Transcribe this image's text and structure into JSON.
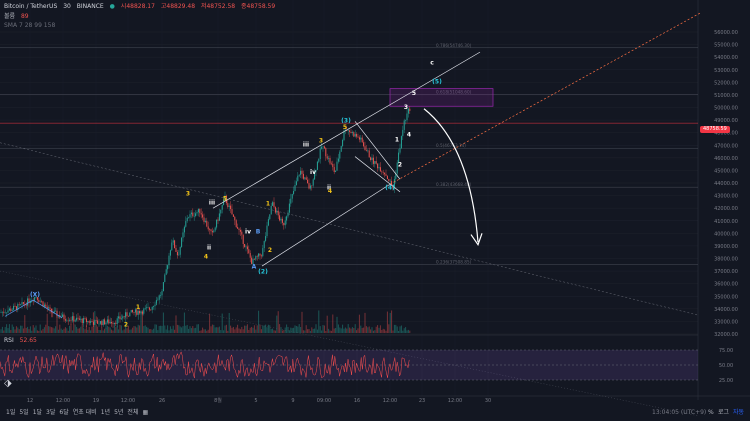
{
  "header": {
    "symbol": "Bitcoin / TetherUS",
    "interval": "30",
    "exchange": "BINANCE",
    "ohlc_open": "시48828.17",
    "ohlc_high": "고48829.48",
    "ohlc_low": "저48752.58",
    "ohlc_close": "종48758.59",
    "volume_label": "볼륨",
    "volume_value": "89",
    "ma_label": "SMA 7 28 99 158"
  },
  "colors": {
    "background": "#131722",
    "up": "#26a69a",
    "down": "#ef5350",
    "rsi_line": "#ff5050",
    "rsi_band": "#3b2663",
    "price_badge": "#f23645",
    "wave_white": "#ffffff",
    "wave_yellow": "#f5c518",
    "wave_teal": "#26c6da",
    "wave_blue": "#5b9cf6",
    "trend_orange": "#ff7043"
  },
  "chart_data": {
    "type": "candlestick",
    "price_axis": [
      "56000.00",
      "55000.00",
      "54000.00",
      "53000.00",
      "52000.00",
      "51000.00",
      "50000.00",
      "49000.00",
      "48000.00",
      "47000.00",
      "46000.00",
      "45000.00",
      "44000.00",
      "43000.00",
      "42000.00",
      "41000.00",
      "40000.00",
      "39000.00",
      "38000.00",
      "37000.00",
      "36000.00",
      "35000.00",
      "34000.00",
      "33000.00",
      "32000.00"
    ],
    "current_price": "48758.59",
    "time_axis": [
      "12",
      "12:00",
      "19",
      "12:00",
      "26",
      "8월",
      "5",
      "9",
      "09:00",
      "16",
      "12:00",
      "23",
      "12:00",
      "30"
    ],
    "fib_levels": [
      {
        "label": "0.786(54746.30)",
        "value": 54746.3
      },
      {
        "label": "0.618(51048.60)",
        "value": 51048.6
      },
      {
        "label": "0.5(46763.14)",
        "value": 46763.14
      },
      {
        "label": "0.382(43668.48)",
        "value": 43668.48
      },
      {
        "label": "0.236(37508.85)",
        "value": 37508.85
      }
    ],
    "target_box": {
      "from": 50100,
      "to": 51500
    },
    "wave_labels": [
      {
        "text": "(X)",
        "price": 35000,
        "color": "wave_blue"
      },
      {
        "text": "2",
        "price": 32600,
        "color": "wave_yellow"
      },
      {
        "text": "1",
        "price": 34000,
        "color": "wave_yellow"
      },
      {
        "text": "3",
        "price": 43000,
        "color": "wave_yellow"
      },
      {
        "text": "iii",
        "price": 42300,
        "color": "wave_white"
      },
      {
        "text": "5",
        "price": 42600,
        "color": "wave_yellow"
      },
      {
        "text": "4",
        "price": 38000,
        "color": "wave_yellow"
      },
      {
        "text": "ii",
        "price": 38700,
        "color": "wave_white"
      },
      {
        "text": "iv",
        "price": 40000,
        "color": "wave_white"
      },
      {
        "text": "B",
        "price": 40000,
        "color": "wave_blue"
      },
      {
        "text": "A",
        "price": 37200,
        "color": "wave_blue"
      },
      {
        "text": "(2)",
        "price": 36800,
        "color": "wave_teal"
      },
      {
        "text": "2",
        "price": 38500,
        "color": "wave_yellow"
      },
      {
        "text": "1",
        "price": 42200,
        "color": "wave_yellow"
      },
      {
        "text": "3",
        "price": 47200,
        "color": "wave_yellow"
      },
      {
        "text": "iii",
        "price": 46900,
        "color": "wave_white"
      },
      {
        "text": "5",
        "price": 48300,
        "color": "wave_yellow"
      },
      {
        "text": "(3)",
        "price": 48800,
        "color": "wave_teal"
      },
      {
        "text": "iv",
        "price": 44700,
        "color": "wave_white"
      },
      {
        "text": "ii",
        "price": 43500,
        "color": "wave_white"
      },
      {
        "text": "4",
        "price": 43200,
        "color": "wave_yellow"
      },
      {
        "text": "(4)",
        "price": 43500,
        "color": "wave_teal"
      },
      {
        "text": "1",
        "price": 47300,
        "color": "wave_white"
      },
      {
        "text": "2",
        "price": 45300,
        "color": "wave_white"
      },
      {
        "text": "3",
        "price": 49900,
        "color": "wave_white"
      },
      {
        "text": "4",
        "price": 47700,
        "color": "wave_white"
      },
      {
        "text": "5",
        "price": 51000,
        "color": "wave_white"
      },
      {
        "text": "(5)",
        "price": 51900,
        "color": "wave_teal"
      },
      {
        "text": "c",
        "price": 53400,
        "color": "wave_white"
      }
    ],
    "rsi": {
      "label": "RSI",
      "value": "52.65",
      "levels": [
        "75.00",
        "50.00",
        "25.00"
      ]
    }
  },
  "bottom_bar": {
    "ranges": [
      "1일",
      "5일",
      "1달",
      "3달",
      "6달",
      "연초 대비",
      "1년",
      "5년",
      "전체"
    ],
    "clock": "13:04:05 (UTC+9)",
    "percent": "%",
    "log": "로그",
    "auto": "자동"
  }
}
